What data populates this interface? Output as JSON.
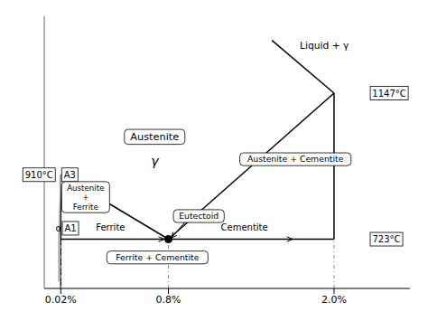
{
  "chart_data": {
    "type": "line",
    "xlim": [
      -0.1,
      2.55
    ],
    "ylim": [
      580,
      1370
    ],
    "xticks": [
      {
        "value": 0.02,
        "label": "0.02%"
      },
      {
        "value": 0.8,
        "label": "0.8%"
      },
      {
        "value": 2.0,
        "label": "2.0%"
      }
    ],
    "tick_labels": "x",
    "series": [
      {
        "x": [
          0.02,
          0.02
        ],
        "values": [
          580,
          910
        ],
        "color": "#000000",
        "line_style": "solid"
      },
      {
        "x": [
          0.02,
          0.8
        ],
        "values": [
          910,
          723
        ],
        "color": "#000000",
        "line_style": "solid"
      },
      {
        "x": [
          0.02,
          2.0
        ],
        "values": [
          723,
          723
        ],
        "color": "#000000",
        "line_style": "solid"
      },
      {
        "x": [
          0.8,
          2.0
        ],
        "values": [
          723,
          1147
        ],
        "color": "#000000",
        "line_style": "solid"
      },
      {
        "x": [
          2.0,
          1.55
        ],
        "values": [
          1147,
          1300
        ],
        "color": "#000000",
        "line_style": "solid"
      },
      {
        "x": [
          2.0,
          2.0
        ],
        "values": [
          723,
          1147
        ],
        "color": "#000000",
        "line_style": "solid"
      },
      {
        "x": [
          0.02,
          0.005
        ],
        "values": [
          910,
          723
        ],
        "color": "#aaaaaa",
        "line_style": "solid"
      },
      {
        "x": [
          0.005,
          0.005
        ],
        "values": [
          723,
          600
        ],
        "color": "#aaaaaa",
        "line_style": "solid"
      },
      {
        "x": [
          0.02,
          0.02
        ],
        "values": [
          580,
          723
        ],
        "color": "#888888",
        "line_style": "dashdot"
      },
      {
        "x": [
          0.8,
          0.8
        ],
        "values": [
          580,
          723
        ],
        "color": "#888888",
        "line_style": "dashdot"
      },
      {
        "x": [
          2.0,
          2.0
        ],
        "values": [
          580,
          723
        ],
        "color": "#888888",
        "line_style": "dashdot"
      },
      {
        "type": "scatter",
        "x": [
          0.8
        ],
        "values": [
          723
        ],
        "color": "#000000",
        "marker": "circle"
      }
    ],
    "annotations": [
      {
        "text": "910°C",
        "x": -0.02,
        "y": 910
      },
      {
        "text": "A3",
        "x": 0.085,
        "y": 910
      },
      {
        "text": "A1",
        "x": 0.09,
        "y": 731
      },
      {
        "text": "α",
        "x": 0.005,
        "y": 731
      },
      {
        "text": "723°C",
        "x": 2.38,
        "y": 723
      },
      {
        "text": "1147°C",
        "x": 2.4,
        "y": 1147
      },
      {
        "text": "Austenite",
        "x": 0.7,
        "y": 1020
      },
      {
        "text": "γ",
        "x": 0.7,
        "y": 950
      },
      {
        "text": "Austenite\n+\nFerrite",
        "x": 0.2,
        "y": 845
      },
      {
        "text": "Austenite + Cementite",
        "x": 1.72,
        "y": 955
      },
      {
        "text": "Eutectoid",
        "x": 1.02,
        "y": 790
      },
      {
        "text": "Ferrite + Cementite",
        "x": 0.72,
        "y": 670
      },
      {
        "text": "Liquid +  γ",
        "x": 1.93,
        "y": 1285
      },
      {
        "text": "Ferrite",
        "x": 0.38,
        "y": 733
      },
      {
        "text": "Cementite",
        "x": 1.35,
        "y": 733
      }
    ],
    "arrows": [
      {
        "from": [
          0.94,
          782
        ],
        "to": [
          0.82,
          726
        ]
      },
      {
        "from": [
          0.22,
          723
        ],
        "to": [
          0.77,
          723
        ]
      },
      {
        "from": [
          0.83,
          723
        ],
        "to": [
          1.7,
          723
        ]
      }
    ]
  }
}
